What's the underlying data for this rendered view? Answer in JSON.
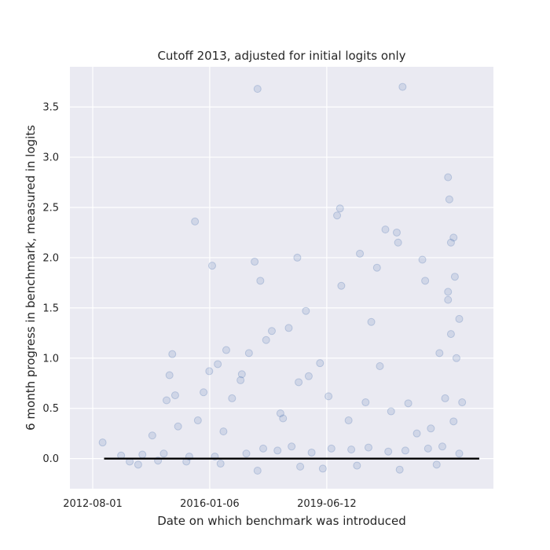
{
  "chart_data": {
    "type": "scatter",
    "title": "Cutoff 2013, adjusted for initial logits only",
    "xlabel": "Date on which benchmark was introduced",
    "ylabel": "6 month progress in benchmark, measured in logits",
    "x_axis_type": "date",
    "xlim": [
      "2011-12-01",
      "2024-05-01"
    ],
    "ylim": [
      -0.3,
      3.9
    ],
    "x_ticks": [
      "2012-08-01",
      "2016-01-06",
      "2019-06-12"
    ],
    "y_ticks": [
      0.0,
      0.5,
      1.0,
      1.5,
      2.0,
      2.5,
      3.0,
      3.5
    ],
    "y_tick_labels": [
      "0.0",
      "0.5",
      "1.0",
      "1.5",
      "2.0",
      "2.5",
      "3.0",
      "3.5"
    ],
    "grid": true,
    "legend": false,
    "colors": {
      "background": "#eaeaf2",
      "points": "#4c72b0",
      "trend": "#000000",
      "grid": "#ffffff"
    },
    "trend_line": {
      "x": [
        "2012-12-01",
        "2023-12-01"
      ],
      "y": [
        0.0,
        0.0
      ]
    },
    "series": [
      {
        "points": [
          {
            "x": "2012-11-15",
            "y": 0.16
          },
          {
            "x": "2013-06-01",
            "y": 0.03
          },
          {
            "x": "2013-09-01",
            "y": -0.03
          },
          {
            "x": "2014-01-15",
            "y": 0.04
          },
          {
            "x": "2014-05-01",
            "y": 0.23
          },
          {
            "x": "2014-07-01",
            "y": -0.02
          },
          {
            "x": "2014-10-01",
            "y": 0.58
          },
          {
            "x": "2014-11-01",
            "y": 0.83
          },
          {
            "x": "2014-12-01",
            "y": 1.04
          },
          {
            "x": "2015-01-01",
            "y": 0.63
          },
          {
            "x": "2015-02-01",
            "y": 0.32
          },
          {
            "x": "2015-06-01",
            "y": 0.02
          },
          {
            "x": "2015-08-01",
            "y": 2.36
          },
          {
            "x": "2015-09-01",
            "y": 0.38
          },
          {
            "x": "2015-11-01",
            "y": 0.66
          },
          {
            "x": "2016-01-01",
            "y": 0.87
          },
          {
            "x": "2016-02-01",
            "y": 1.92
          },
          {
            "x": "2016-04-01",
            "y": 0.94
          },
          {
            "x": "2016-06-01",
            "y": 0.27
          },
          {
            "x": "2016-07-01",
            "y": 1.08
          },
          {
            "x": "2016-09-01",
            "y": 0.6
          },
          {
            "x": "2016-12-01",
            "y": 0.78
          },
          {
            "x": "2016-12-15",
            "y": 0.84
          },
          {
            "x": "2017-03-01",
            "y": 1.05
          },
          {
            "x": "2017-05-01",
            "y": 1.96
          },
          {
            "x": "2017-06-01",
            "y": 3.68
          },
          {
            "x": "2017-07-01",
            "y": 1.77
          },
          {
            "x": "2017-09-01",
            "y": 1.18
          },
          {
            "x": "2017-11-01",
            "y": 1.27
          },
          {
            "x": "2018-02-01",
            "y": 0.45
          },
          {
            "x": "2018-03-01",
            "y": 0.4
          },
          {
            "x": "2018-05-01",
            "y": 1.3
          },
          {
            "x": "2018-08-01",
            "y": 2.0
          },
          {
            "x": "2018-08-15",
            "y": 0.76
          },
          {
            "x": "2018-11-01",
            "y": 1.47
          },
          {
            "x": "2018-12-01",
            "y": 0.82
          },
          {
            "x": "2019-04-01",
            "y": 0.95
          },
          {
            "x": "2019-07-01",
            "y": 0.62
          },
          {
            "x": "2019-10-01",
            "y": 2.42
          },
          {
            "x": "2019-11-01",
            "y": 2.49
          },
          {
            "x": "2019-11-15",
            "y": 1.72
          },
          {
            "x": "2020-02-01",
            "y": 0.38
          },
          {
            "x": "2020-06-01",
            "y": 2.04
          },
          {
            "x": "2020-08-01",
            "y": 0.56
          },
          {
            "x": "2020-10-01",
            "y": 1.36
          },
          {
            "x": "2020-12-01",
            "y": 1.9
          },
          {
            "x": "2021-01-01",
            "y": 0.92
          },
          {
            "x": "2021-03-01",
            "y": 2.28
          },
          {
            "x": "2021-05-01",
            "y": 0.47
          },
          {
            "x": "2021-07-01",
            "y": 2.25
          },
          {
            "x": "2021-07-15",
            "y": 2.15
          },
          {
            "x": "2021-09-01",
            "y": 3.7
          },
          {
            "x": "2021-11-01",
            "y": 0.55
          },
          {
            "x": "2022-02-01",
            "y": 0.25
          },
          {
            "x": "2022-04-01",
            "y": 1.98
          },
          {
            "x": "2022-05-01",
            "y": 1.77
          },
          {
            "x": "2022-07-01",
            "y": 0.3
          },
          {
            "x": "2022-10-01",
            "y": 1.05
          },
          {
            "x": "2023-01-01",
            "y": 2.8
          },
          {
            "x": "2023-01-15",
            "y": 2.58
          },
          {
            "x": "2023-02-01",
            "y": 2.15
          },
          {
            "x": "2023-03-01",
            "y": 2.2
          },
          {
            "x": "2023-03-15",
            "y": 1.81
          },
          {
            "x": "2023-01-01",
            "y": 1.66
          },
          {
            "x": "2023-01-01",
            "y": 1.58
          },
          {
            "x": "2023-05-01",
            "y": 1.39
          },
          {
            "x": "2023-02-01",
            "y": 1.24
          },
          {
            "x": "2023-04-01",
            "y": 1.0
          },
          {
            "x": "2022-12-01",
            "y": 0.6
          },
          {
            "x": "2023-06-01",
            "y": 0.56
          },
          {
            "x": "2023-03-01",
            "y": 0.37
          },
          {
            "x": "2016-03-01",
            "y": 0.02
          },
          {
            "x": "2017-02-01",
            "y": 0.05
          },
          {
            "x": "2017-08-01",
            "y": 0.1
          },
          {
            "x": "2018-01-01",
            "y": 0.08
          },
          {
            "x": "2018-06-01",
            "y": 0.12
          },
          {
            "x": "2019-01-01",
            "y": 0.06
          },
          {
            "x": "2019-08-01",
            "y": 0.1
          },
          {
            "x": "2020-03-01",
            "y": 0.09
          },
          {
            "x": "2020-09-01",
            "y": 0.11
          },
          {
            "x": "2021-04-01",
            "y": 0.07
          },
          {
            "x": "2021-10-01",
            "y": 0.08
          },
          {
            "x": "2022-06-01",
            "y": 0.1
          },
          {
            "x": "2022-11-01",
            "y": 0.12
          },
          {
            "x": "2023-05-01",
            "y": 0.05
          },
          {
            "x": "2017-06-01",
            "y": -0.12
          },
          {
            "x": "2018-09-01",
            "y": -0.08
          },
          {
            "x": "2019-05-01",
            "y": -0.1
          },
          {
            "x": "2020-05-01",
            "y": -0.07
          },
          {
            "x": "2021-08-01",
            "y": -0.11
          },
          {
            "x": "2022-09-01",
            "y": -0.06
          },
          {
            "x": "2016-05-01",
            "y": -0.05
          },
          {
            "x": "2015-05-01",
            "y": -0.03
          },
          {
            "x": "2013-12-01",
            "y": -0.06
          },
          {
            "x": "2014-09-01",
            "y": 0.05
          }
        ]
      }
    ]
  }
}
